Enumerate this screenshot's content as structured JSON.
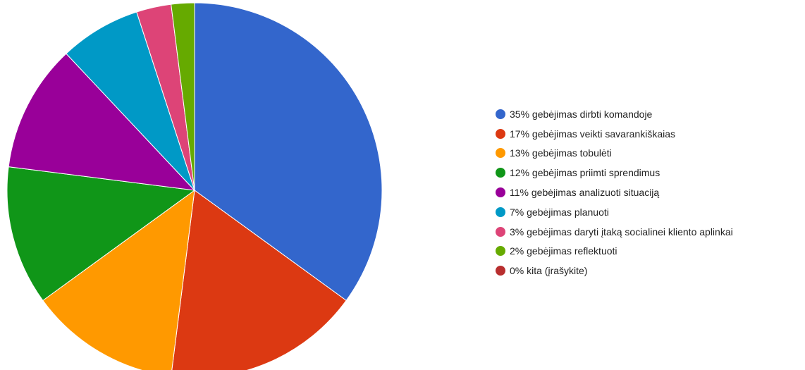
{
  "chart_data": {
    "type": "pie",
    "slices": [
      {
        "label": "35% gebėjimas dirbti komandoje",
        "value": 35,
        "color": "#3366cc"
      },
      {
        "label": "17% gebėjimas veikti savarankiškaias",
        "value": 17,
        "color": "#dc3912"
      },
      {
        "label": "13% gebėjimas tobulėti",
        "value": 13,
        "color": "#ff9900"
      },
      {
        "label": "12% gebėjimas priimti sprendimus",
        "value": 12,
        "color": "#109618"
      },
      {
        "label": "11% gebėjimas analizuoti situaciją",
        "value": 11,
        "color": "#990099"
      },
      {
        "label": "7% gebėjimas planuoti",
        "value": 7,
        "color": "#0099c6"
      },
      {
        "label": "3% gebėjimas daryti įtaką socialinei kliento aplinkai",
        "value": 3,
        "color": "#dd4477"
      },
      {
        "label": "2% gebėjimas reflektuoti",
        "value": 2,
        "color": "#66aa00"
      },
      {
        "label": "0% kita (įrašykite)",
        "value": 0,
        "color": "#b82e2e"
      }
    ],
    "legend_position": "right"
  }
}
